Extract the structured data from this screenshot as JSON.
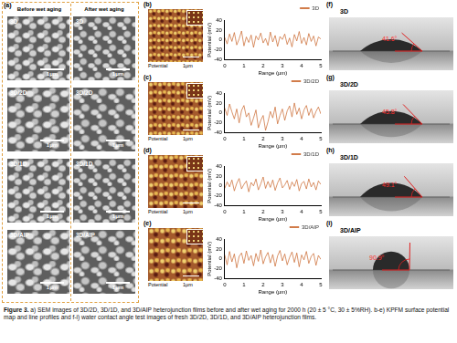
{
  "sem": {
    "label": "(a)",
    "headers": [
      "Before wet aging",
      "After wet aging"
    ],
    "samples": [
      "3D",
      "3D/2D",
      "3D/1D",
      "3D/AIP"
    ],
    "scale_bar": "1μm"
  },
  "kpfm": {
    "labels": [
      "(b)",
      "(c)",
      "(d)",
      "(e)"
    ],
    "map_label": "Potential",
    "scale_bar": "1μm"
  },
  "contact_angle": {
    "labels": [
      "(f)",
      "(g)",
      "(h)",
      "(i)"
    ],
    "samples": [
      {
        "name": "3D",
        "angle": "41.6°"
      },
      {
        "name": "3D/2D",
        "angle": "45.8°"
      },
      {
        "name": "3D/1D",
        "angle": "49.1°"
      },
      {
        "name": "3D/AIP",
        "angle": "90.9°"
      }
    ]
  },
  "chart_data": [
    {
      "type": "line",
      "x_label": "Range (μm)",
      "y_label": "Potential (mV)",
      "x": [
        0,
        0.125,
        0.25,
        0.375,
        0.5,
        0.625,
        0.75,
        0.875,
        1,
        1.125,
        1.25,
        1.375,
        1.5,
        1.625,
        1.75,
        1.875,
        2,
        2.125,
        2.25,
        2.375,
        2.5,
        2.625,
        2.75,
        2.875,
        3,
        3.125,
        3.25,
        3.375,
        3.5,
        3.625,
        3.75,
        3.875,
        4,
        4.125,
        4.25,
        4.375,
        4.5,
        4.625,
        4.75,
        4.875,
        5
      ],
      "series": [
        {
          "name": "3D",
          "color": "#c8642a",
          "values": [
            5,
            -8,
            12,
            -3,
            15,
            -10,
            2,
            18,
            -12,
            6,
            -5,
            10,
            -15,
            8,
            0,
            14,
            -6,
            3,
            -11,
            16,
            -4,
            9,
            -13,
            7,
            1,
            12,
            -9,
            4,
            -14,
            11,
            -2,
            17,
            -7,
            5,
            -10,
            13,
            -3,
            8,
            -12,
            6,
            2
          ]
        }
      ],
      "xlim": [
        0,
        5
      ],
      "xticks": [
        0,
        1,
        2,
        3,
        4,
        5
      ],
      "ylim": [
        -40,
        40
      ],
      "yticks": [
        -40,
        -20,
        0,
        20,
        40
      ],
      "grid": false,
      "legend": "upper right"
    },
    {
      "type": "line",
      "x_label": "Range (μm)",
      "y_label": "Potential (mV)",
      "x": [
        0,
        0.125,
        0.25,
        0.375,
        0.5,
        0.625,
        0.75,
        0.875,
        1,
        1.125,
        1.25,
        1.375,
        1.5,
        1.625,
        1.75,
        1.875,
        2,
        2.125,
        2.25,
        2.375,
        2.5,
        2.625,
        2.75,
        2.875,
        3,
        3.125,
        3.25,
        3.375,
        3.5,
        3.625,
        3.75,
        3.875,
        4,
        4.125,
        4.25,
        4.375,
        4.5,
        4.625,
        4.75,
        4.875,
        5
      ],
      "series": [
        {
          "name": "3D/2D",
          "color": "#c8642a",
          "values": [
            10,
            -5,
            18,
            2,
            -12,
            8,
            -20,
            5,
            15,
            -8,
            0,
            -25,
            -10,
            6,
            -30,
            -15,
            -5,
            -35,
            -18,
            3,
            -10,
            12,
            -22,
            -5,
            8,
            -15,
            4,
            14,
            -8,
            20,
            -3,
            10,
            -12,
            6,
            15,
            -5,
            9,
            -10,
            3,
            12,
            -2
          ]
        }
      ],
      "xlim": [
        0,
        5
      ],
      "xticks": [
        0,
        1,
        2,
        3,
        4,
        5
      ],
      "ylim": [
        -40,
        40
      ],
      "yticks": [
        -40,
        -20,
        0,
        20,
        40
      ],
      "grid": false,
      "legend": "upper right"
    },
    {
      "type": "line",
      "x_label": "Range (μm)",
      "y_label": "Potential (mV)",
      "x": [
        0,
        0.125,
        0.25,
        0.375,
        0.5,
        0.625,
        0.75,
        0.875,
        1,
        1.125,
        1.25,
        1.375,
        1.5,
        1.625,
        1.75,
        1.875,
        2,
        2.125,
        2.25,
        2.375,
        2.5,
        2.625,
        2.75,
        2.875,
        3,
        3.125,
        3.25,
        3.375,
        3.5,
        3.625,
        3.75,
        3.875,
        4,
        4.125,
        4.25,
        4.375,
        4.5,
        4.625,
        4.75,
        4.875,
        5
      ],
      "series": [
        {
          "name": "3D/1D",
          "color": "#c8642a",
          "values": [
            -5,
            8,
            -2,
            12,
            -10,
            5,
            15,
            -6,
            3,
            10,
            -12,
            7,
            0,
            14,
            -8,
            4,
            18,
            -5,
            9,
            -3,
            12,
            -9,
            6,
            16,
            -4,
            2,
            11,
            -7,
            8,
            -1,
            13,
            -10,
            5,
            9,
            -6,
            14,
            -2,
            7,
            -8,
            10,
            3
          ]
        }
      ],
      "xlim": [
        0,
        5
      ],
      "xticks": [
        0,
        1,
        2,
        3,
        4,
        5
      ],
      "ylim": [
        -40,
        40
      ],
      "yticks": [
        -40,
        -20,
        0,
        20,
        40
      ],
      "grid": false,
      "legend": "upper right"
    },
    {
      "type": "line",
      "x_label": "Range (μm)",
      "y_label": "Potential (mV)",
      "x": [
        0,
        0.125,
        0.25,
        0.375,
        0.5,
        0.625,
        0.75,
        0.875,
        1,
        1.125,
        1.25,
        1.375,
        1.5,
        1.625,
        1.75,
        1.875,
        2,
        2.125,
        2.25,
        2.375,
        2.5,
        2.625,
        2.75,
        2.875,
        3,
        3.125,
        3.25,
        3.375,
        3.5,
        3.625,
        3.75,
        3.875,
        4,
        4.125,
        4.25,
        4.375,
        4.5,
        4.625,
        4.75,
        4.875,
        5
      ],
      "series": [
        {
          "name": "3D/AIP",
          "color": "#c8642a",
          "values": [
            8,
            -12,
            15,
            -6,
            10,
            -18,
            5,
            12,
            -9,
            16,
            -3,
            7,
            -14,
            11,
            -5,
            18,
            -10,
            4,
            13,
            -8,
            9,
            -15,
            6,
            17,
            -4,
            10,
            -12,
            3,
            14,
            -7,
            12,
            -16,
            8,
            -2,
            15,
            -9,
            5,
            11,
            -13,
            7,
            -1
          ]
        }
      ],
      "xlim": [
        0,
        5
      ],
      "xticks": [
        0,
        1,
        2,
        3,
        4,
        5
      ],
      "ylim": [
        -40,
        40
      ],
      "yticks": [
        -40,
        -20,
        0,
        20,
        40
      ],
      "grid": false,
      "legend": "upper right"
    }
  ],
  "caption": {
    "lead": "Figure 3.",
    "text": "a) SEM images of 3D/2D, 3D/1D, and 3D/AIP heterojunction films before and after wet aging for 2000 h (20 ± 5 °C, 30 ± 5%RH). b-e) KPFM surface potential map and line profiles and f-i) water contact angle test images of fresh 3D/2D, 3D/1D, and 3D/AIP heterojunction films."
  }
}
